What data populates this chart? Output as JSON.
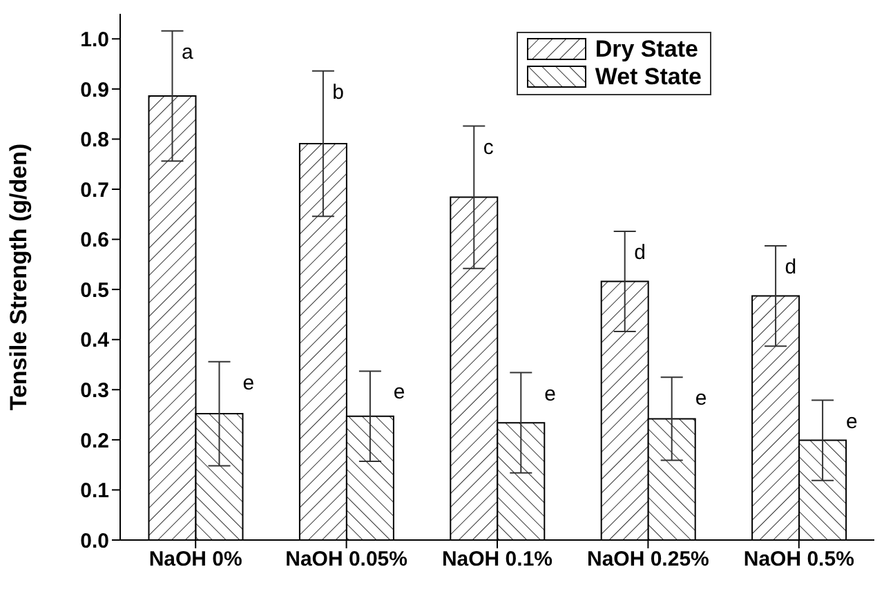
{
  "chart_data": {
    "type": "bar",
    "ylabel": "Tensile Strength (g/den)",
    "categories": [
      "NaOH 0%",
      "NaOH 0.05%",
      "NaOH 0.1%",
      "NaOH 0.25%",
      "NaOH 0.5%"
    ],
    "series": [
      {
        "name": "Dry State",
        "color": "#000000",
        "values": [
          0.886,
          0.791,
          0.684,
          0.516,
          0.487
        ],
        "errors": [
          0.13,
          0.145,
          0.142,
          0.1,
          0.1
        ]
      },
      {
        "name": "Wet State",
        "color": "#000000",
        "values": [
          0.252,
          0.247,
          0.234,
          0.242,
          0.199
        ],
        "errors": [
          0.104,
          0.09,
          0.1,
          0.083,
          0.08
        ]
      }
    ],
    "ylim": [
      0,
      1.05
    ],
    "yticks": [
      {
        "value": 0,
        "label": "0.0"
      },
      {
        "value": 0.1,
        "label": "0.1"
      },
      {
        "value": 0.2,
        "label": "0.2"
      },
      {
        "value": 0.3,
        "label": "0.3"
      },
      {
        "value": 0.4,
        "label": "0.4"
      },
      {
        "value": 0.5,
        "label": "0.5"
      },
      {
        "value": 0.6,
        "label": "0.6"
      },
      {
        "value": 0.7,
        "label": "0.7"
      },
      {
        "value": 0.8,
        "label": "0.8"
      },
      {
        "value": 0.9,
        "label": "0.9"
      },
      {
        "value": 1.0,
        "label": "1.0"
      }
    ],
    "annotations": [
      {
        "text": "a",
        "x": "NaOH 0%",
        "y": 0.886
      },
      {
        "text": "e",
        "x": "NaOH 0%",
        "y": 0.252
      },
      {
        "text": "b",
        "x": "NaOH 0.05%",
        "y": 0.791
      },
      {
        "text": "e",
        "x": "NaOH 0.05%",
        "y": 0.247
      },
      {
        "text": "c",
        "x": "NaOH 0.1%",
        "y": 0.684
      },
      {
        "text": "e",
        "x": "NaOH 0.1%",
        "y": 0.234
      },
      {
        "text": "d",
        "x": "NaOH 0.25%",
        "y": 0.516
      },
      {
        "text": "e",
        "x": "NaOH 0.25%",
        "y": 0.242
      },
      {
        "text": "d",
        "x": "NaOH 0.5%",
        "y": 0.487
      },
      {
        "text": "e",
        "x": "NaOH 0.5%",
        "y": 0.199
      }
    ],
    "legend": "top right",
    "grid": false
  }
}
